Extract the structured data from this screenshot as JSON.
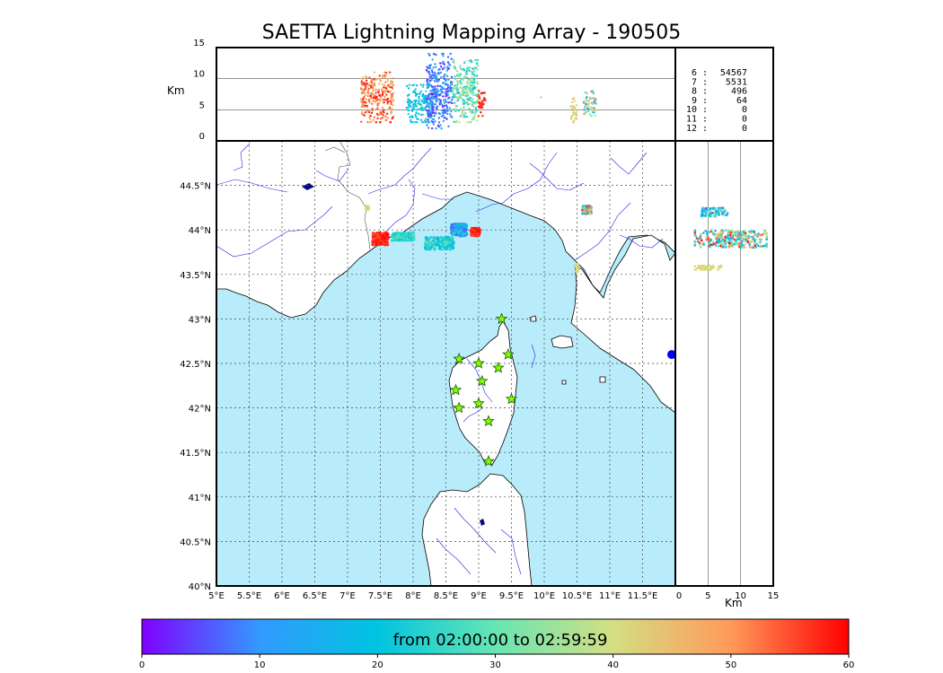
{
  "title": "SAETTA Lightning Mapping Array - 190505",
  "colorbar": {
    "label": "from 02:00:00 to 02:59:59",
    "ticks": [
      "0",
      "10",
      "20",
      "30",
      "40",
      "50",
      "60"
    ],
    "colors": [
      "#7f00ff",
      "#3399ff",
      "#00c4e0",
      "#66e6b3",
      "#d4df83",
      "#ff9a5a",
      "#ff0000"
    ]
  },
  "colors": {
    "sea": "#b9ecfb",
    "land": "#ffffff",
    "rivers": "#2222ee",
    "coast": "#000000",
    "station_fill": "#7fff00",
    "station_edge": "#1a5a00",
    "highlight": "#ff0000"
  },
  "stats": [
    {
      "n": "6",
      "v": "54567"
    },
    {
      "n": "7",
      "v": "5531",
      "highlight": true
    },
    {
      "n": "8",
      "v": "496"
    },
    {
      "n": "9",
      "v": "64"
    },
    {
      "n": "10",
      "v": "0"
    },
    {
      "n": "11",
      "v": "0"
    },
    {
      "n": "12",
      "v": "0"
    }
  ],
  "chart_data": [
    {
      "type": "scatter",
      "name_role": "altitude-vs-longitude",
      "xlim": [
        5,
        12.5
      ],
      "ylabel": "Km",
      "ylim": [
        0,
        15
      ],
      "yticks": [
        "15",
        "10",
        "5",
        "0"
      ],
      "grid": "horizontal lines at 5 and 10 km",
      "clusters": [
        {
          "x": [
            7.2,
            7.7
          ],
          "alt": [
            3,
            11
          ],
          "t": [
            45,
            60
          ]
        },
        {
          "x": [
            7.9,
            8.3
          ],
          "alt": [
            3,
            9
          ],
          "t": [
            15,
            25
          ]
        },
        {
          "x": [
            8.2,
            8.6
          ],
          "alt": [
            2,
            14
          ],
          "t": [
            2,
            15
          ]
        },
        {
          "x": [
            8.6,
            9.0
          ],
          "alt": [
            3,
            13
          ],
          "t": [
            20,
            40
          ]
        },
        {
          "x": [
            9.0,
            9.1
          ],
          "alt": [
            4,
            8
          ],
          "t": [
            55,
            60
          ]
        },
        {
          "x": [
            10.4,
            10.5
          ],
          "alt": [
            3,
            7
          ],
          "t": [
            40,
            45
          ]
        },
        {
          "x": [
            10.6,
            10.8
          ],
          "alt": [
            4,
            8
          ],
          "t": [
            10,
            55
          ]
        }
      ]
    },
    {
      "type": "scatter",
      "name_role": "map-plan-view",
      "xlim": [
        5,
        12
      ],
      "ylim": [
        40,
        45
      ],
      "xticks": [
        "5°E",
        "5.5°E",
        "6°E",
        "6.5°E",
        "7°E",
        "7.5°E",
        "8°E",
        "8.5°E",
        "9°E",
        "9.5°E",
        "10°E",
        "10.5°E",
        "11°E",
        "11.5°E"
      ],
      "yticks": [
        "44.5°N",
        "44°N",
        "43.5°N",
        "43°N",
        "42.5°N",
        "42°N",
        "41.5°N",
        "41°N",
        "40.5°N",
        "40°N"
      ],
      "grid": "dotted",
      "clusters": [
        {
          "lon": [
            7.4,
            7.6
          ],
          "lat": [
            43.85,
            43.95
          ],
          "t": [
            55,
            60
          ]
        },
        {
          "lon": [
            7.7,
            8.0
          ],
          "lat": [
            43.9,
            43.95
          ],
          "t": [
            20,
            30
          ]
        },
        {
          "lon": [
            8.2,
            8.6
          ],
          "lat": [
            43.8,
            43.9
          ],
          "t": [
            15,
            30
          ]
        },
        {
          "lon": [
            8.6,
            8.8
          ],
          "lat": [
            43.95,
            44.05
          ],
          "t": [
            5,
            25
          ]
        },
        {
          "lon": [
            8.9,
            9.0
          ],
          "lat": [
            43.95,
            44.0
          ],
          "t": [
            55,
            60
          ]
        },
        {
          "lon": [
            10.6,
            10.7
          ],
          "lat": [
            44.2,
            44.25
          ],
          "t": [
            10,
            60
          ]
        },
        {
          "lon": [
            10.5,
            10.5
          ],
          "lat": [
            43.55,
            43.6
          ],
          "t": [
            40,
            42
          ]
        },
        {
          "lon": [
            7.3,
            7.3
          ],
          "lat": [
            44.25,
            44.25
          ],
          "t": [
            40,
            45
          ]
        }
      ],
      "stations": [
        {
          "lon": 9.35,
          "lat": 43.0
        },
        {
          "lon": 8.7,
          "lat": 42.55
        },
        {
          "lon": 9.0,
          "lat": 42.5
        },
        {
          "lon": 9.45,
          "lat": 42.6
        },
        {
          "lon": 9.3,
          "lat": 42.45
        },
        {
          "lon": 9.05,
          "lat": 42.3
        },
        {
          "lon": 8.65,
          "lat": 42.2
        },
        {
          "lon": 9.5,
          "lat": 42.1
        },
        {
          "lon": 8.7,
          "lat": 42.0
        },
        {
          "lon": 9.0,
          "lat": 42.05
        },
        {
          "lon": 9.15,
          "lat": 41.85
        },
        {
          "lon": 9.15,
          "lat": 41.4
        }
      ],
      "extra_marker": {
        "lon": 12.0,
        "lat": 42.6,
        "color": "#0000ff"
      }
    },
    {
      "type": "scatter",
      "name_role": "altitude-vs-latitude",
      "xlabel": "Km",
      "xlim": [
        0,
        15
      ],
      "xticks": [
        "0",
        "5",
        "10",
        "15"
      ],
      "grid": "vertical lines at 5 and 10 km",
      "clusters": [
        {
          "alt": [
            3,
            14
          ],
          "lat": [
            43.8,
            44.0
          ],
          "t": [
            10,
            60
          ]
        },
        {
          "alt": [
            4,
            8
          ],
          "lat": [
            44.15,
            44.25
          ],
          "t": [
            5,
            35
          ]
        },
        {
          "alt": [
            3,
            7
          ],
          "lat": [
            43.55,
            43.6
          ],
          "t": [
            40,
            42
          ]
        }
      ]
    }
  ]
}
